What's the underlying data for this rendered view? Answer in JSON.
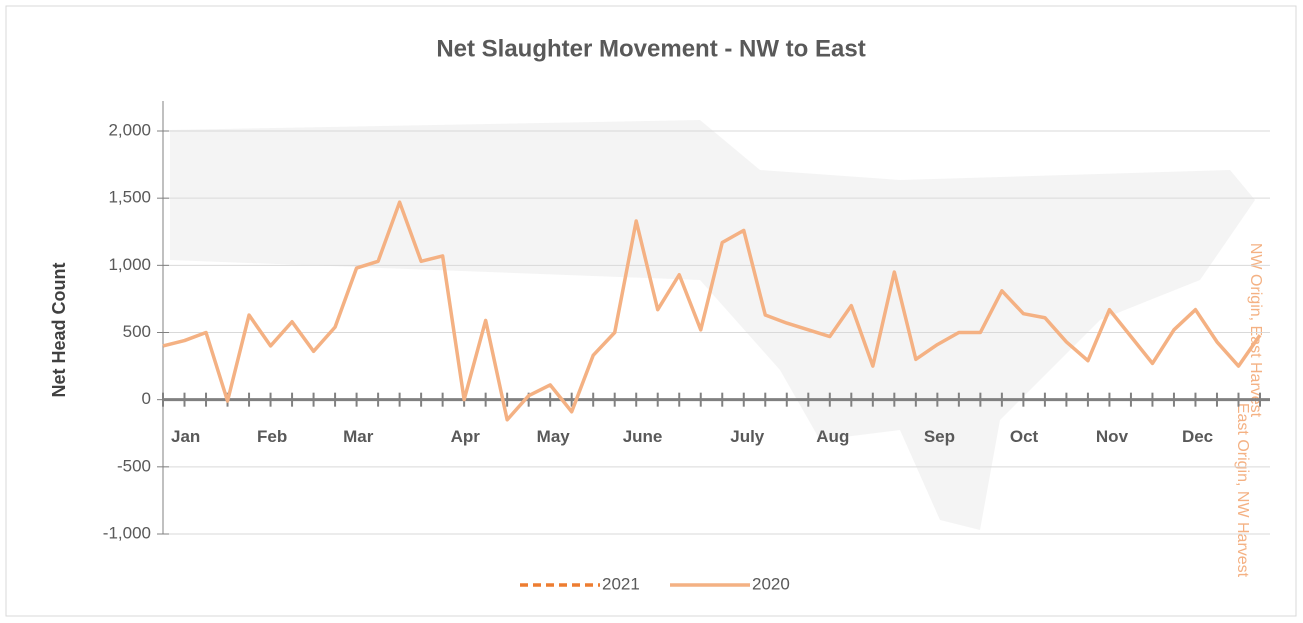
{
  "chart_data": {
    "type": "line",
    "title": "Net Slaughter Movement - NW to East",
    "y_label": "Net Head Count",
    "annotations": [
      "NW Origin, East Harvest",
      "East Origin, NW Harvest"
    ],
    "categories": [
      "Jan",
      null,
      null,
      null,
      "Feb",
      null,
      null,
      null,
      "Mar",
      null,
      null,
      null,
      null,
      "Apr",
      null,
      null,
      null,
      "May",
      null,
      null,
      null,
      "June",
      null,
      null,
      null,
      null,
      "July",
      null,
      null,
      null,
      "Aug",
      null,
      null,
      null,
      null,
      "Sep",
      null,
      null,
      null,
      "Oct",
      null,
      null,
      null,
      "Nov",
      null,
      null,
      null,
      "Dec",
      null,
      null,
      null,
      null
    ],
    "series": [
      {
        "name": "2021",
        "color": "#ed7d31",
        "dashed": true,
        "values": [
          null,
          null,
          null,
          null,
          null,
          null,
          null,
          null,
          null,
          null,
          null,
          null,
          null,
          null,
          null,
          null,
          null,
          null,
          null,
          null,
          null,
          null,
          null,
          null,
          null,
          null,
          null,
          null,
          null,
          null,
          null,
          null,
          null,
          null,
          null,
          null,
          null,
          null,
          null,
          null,
          null,
          null,
          null,
          null,
          null,
          null,
          null,
          null,
          null,
          null,
          null,
          null
        ]
      },
      {
        "name": "2020",
        "color": "#f4b183",
        "dashed": false,
        "values": [
          400,
          440,
          500,
          -10,
          630,
          400,
          580,
          360,
          540,
          980,
          1030,
          1470,
          1030,
          1070,
          0,
          590,
          -150,
          30,
          110,
          -90,
          330,
          500,
          1330,
          670,
          930,
          520,
          1170,
          1260,
          630,
          570,
          520,
          470,
          700,
          250,
          950,
          300,
          410,
          500,
          500,
          810,
          640,
          610,
          430,
          290,
          670,
          470,
          270,
          520,
          670,
          430,
          250,
          480
        ]
      }
    ],
    "ylim": [
      -1000,
      2000
    ],
    "yticks": [
      {
        "value": -1000,
        "label": "-1,000"
      },
      -500,
      0,
      500,
      {
        "value": 1000,
        "label": "1,000"
      },
      {
        "value": 1500,
        "label": "1,500"
      },
      {
        "value": 2000,
        "label": "2,000"
      }
    ],
    "grid": true
  }
}
